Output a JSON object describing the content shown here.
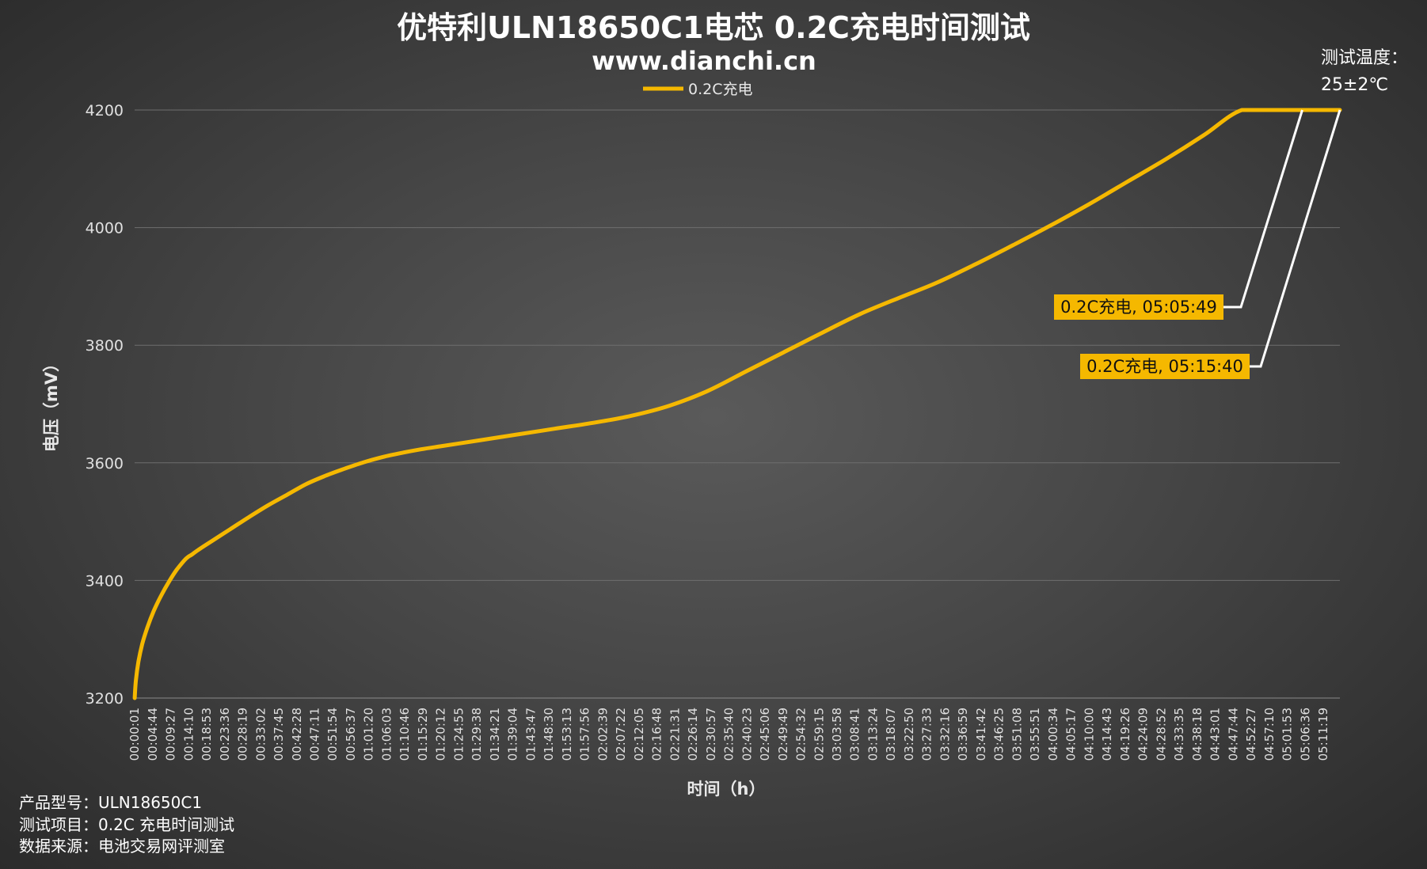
{
  "chart_data": {
    "type": "line",
    "title": "优特利ULN18650C1电芯 0.2C充电时间测试",
    "subtitle": "www.dianchi.cn",
    "xlabel": "时间（h）",
    "ylabel": "电压（mV）",
    "ylim": [
      3200,
      4200
    ],
    "yticks": [
      "3200",
      "3400",
      "3600",
      "3800",
      "4000",
      "4200"
    ],
    "grid": "horizontal",
    "legend": "top-center",
    "x_tick_labels": [
      "00:00:01",
      "00:04:44",
      "00:09:27",
      "00:14:10",
      "00:18:53",
      "00:23:36",
      "00:28:19",
      "00:33:02",
      "00:37:45",
      "00:42:28",
      "00:47:11",
      "00:51:54",
      "00:56:37",
      "01:01:20",
      "01:06:03",
      "01:10:46",
      "01:15:29",
      "01:20:12",
      "01:24:55",
      "01:29:38",
      "01:34:21",
      "01:39:04",
      "01:43:47",
      "01:48:30",
      "01:53:13",
      "01:57:56",
      "02:02:39",
      "02:07:22",
      "02:12:05",
      "02:16:48",
      "02:21:31",
      "02:26:14",
      "02:30:57",
      "02:35:40",
      "02:40:23",
      "02:45:06",
      "02:49:49",
      "02:54:32",
      "02:59:15",
      "03:03:58",
      "03:08:41",
      "03:13:24",
      "03:18:07",
      "03:22:50",
      "03:27:33",
      "03:32:16",
      "03:36:59",
      "03:41:42",
      "03:46:25",
      "03:51:08",
      "03:55:51",
      "04:00:34",
      "04:05:17",
      "04:10:00",
      "04:14:43",
      "04:19:26",
      "04:24:09",
      "04:28:52",
      "04:33:35",
      "04:38:18",
      "04:43:01",
      "04:47:44",
      "04:52:27",
      "04:57:10",
      "05:01:53",
      "05:06:36",
      "05:11:19"
    ],
    "x_max_seconds": 18940,
    "series": [
      {
        "name": "0.2C充电",
        "color": "#F5B800",
        "x_seconds": [
          1,
          20,
          60,
          120,
          200,
          300,
          420,
          540,
          660,
          780,
          840,
          900,
          1000,
          1200,
          1500,
          1800,
          2100,
          2400,
          2700,
          3000,
          3300,
          3600,
          3900,
          4200,
          4500,
          4800,
          5100,
          5400,
          5700,
          6000,
          6600,
          7200,
          7800,
          8400,
          9000,
          9600,
          10200,
          10800,
          11400,
          12000,
          12600,
          13200,
          13800,
          14400,
          15000,
          15600,
          16200,
          16800,
          17400,
          18000,
          18349,
          18940
        ],
        "values": [
          3200,
          3230,
          3262,
          3292,
          3320,
          3348,
          3375,
          3398,
          3418,
          3434,
          3440,
          3444,
          3452,
          3466,
          3487,
          3508,
          3528,
          3546,
          3564,
          3578,
          3590,
          3601,
          3610,
          3617,
          3623,
          3628,
          3633,
          3638,
          3643,
          3648,
          3658,
          3668,
          3680,
          3697,
          3722,
          3755,
          3788,
          3821,
          3853,
          3880,
          3906,
          3937,
          3970,
          4004,
          4040,
          4078,
          4116,
          4157,
          4200,
          4200,
          4200,
          4200
        ]
      }
    ],
    "annotations": [
      {
        "text": "0.2C充电, 05:05:49",
        "x_seconds": 18349,
        "value": 4200
      },
      {
        "text": "0.2C充电, 05:15:40",
        "x_seconds": 18940,
        "value": 4200
      }
    ]
  },
  "corner_note": {
    "line1": "测试温度：",
    "line2": "25±2℃"
  },
  "info": {
    "model_label": "产品型号：",
    "model_value": "ULN18650C1",
    "item_label": "测试项目：",
    "item_value": "0.2C 充电时间测试",
    "source_label": "数据来源：",
    "source_value": "电池交易网评测室"
  }
}
